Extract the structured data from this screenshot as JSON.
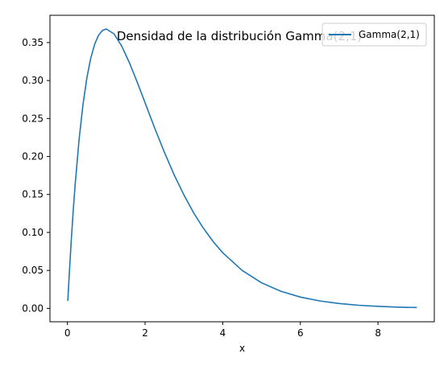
{
  "chart_data": {
    "type": "line",
    "title": "Densidad de la distribución Gamma(2,1)",
    "xlabel": "x",
    "ylabel": "",
    "xlim": [
      -0.45,
      9.45
    ],
    "ylim": [
      -0.0176,
      0.3859
    ],
    "xticks": [
      0,
      2,
      4,
      6,
      8
    ],
    "xtick_labels": [
      "0",
      "2",
      "4",
      "6",
      "8"
    ],
    "yticks": [
      0.0,
      0.05,
      0.1,
      0.15,
      0.2,
      0.25,
      0.3,
      0.35
    ],
    "ytick_labels": [
      "0.00",
      "0.05",
      "0.10",
      "0.15",
      "0.20",
      "0.25",
      "0.30",
      "0.35"
    ],
    "grid": false,
    "legend_position": "top-right",
    "series": [
      {
        "name": "Gamma(2,1)",
        "color": "#1f77b4",
        "x": [
          0.01,
          0.05,
          0.1,
          0.15,
          0.2,
          0.3,
          0.4,
          0.5,
          0.6,
          0.7,
          0.8,
          0.9,
          1.0,
          1.2,
          1.4,
          1.6,
          1.8,
          2.0,
          2.25,
          2.5,
          2.75,
          3.0,
          3.25,
          3.5,
          3.75,
          4.0,
          4.5,
          5.0,
          5.5,
          6.0,
          6.5,
          7.0,
          7.5,
          8.0,
          8.5,
          9.0
        ],
        "values": [
          0.0099,
          0.0476,
          0.0905,
          0.1291,
          0.1637,
          0.2222,
          0.2681,
          0.3033,
          0.3293,
          0.3476,
          0.3595,
          0.3659,
          0.3679,
          0.3614,
          0.3452,
          0.323,
          0.2975,
          0.2707,
          0.2371,
          0.2052,
          0.1757,
          0.1494,
          0.1259,
          0.1057,
          0.0882,
          0.0733,
          0.05,
          0.0337,
          0.0225,
          0.0149,
          0.0098,
          0.0064,
          0.0041,
          0.0027,
          0.0017,
          0.0011
        ]
      }
    ]
  }
}
